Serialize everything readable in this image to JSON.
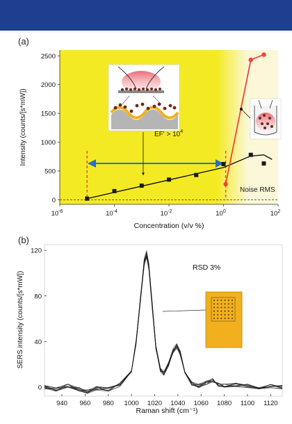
{
  "panels": {
    "a_label": "(a)",
    "b_label": "(b)"
  },
  "chart_data": [
    {
      "type": "scatter",
      "xlabel": "Concentration (v/v %)",
      "ylabel": "Intensity (counts/[s*mW])",
      "x_scale": "log",
      "xlim": [
        1e-06,
        100
      ],
      "ylim": [
        -80,
        2600
      ],
      "x_ticks": [
        {
          "value": 1e-06,
          "mant": "10",
          "exp": "-6"
        },
        {
          "value": 0.0001,
          "mant": "10",
          "exp": "-4"
        },
        {
          "value": 0.01,
          "mant": "10",
          "exp": "-2"
        },
        {
          "value": 1,
          "mant": "10",
          "exp": "0"
        },
        {
          "value": 100,
          "mant": "10",
          "exp": "2"
        }
      ],
      "y_ticks": [
        0,
        500,
        1000,
        1500,
        2000,
        2500
      ],
      "colors": {
        "background_low": "#f4ea24",
        "background_high": "#fbf7d8",
        "points": "#1a1a1a",
        "fit": "#111111",
        "red": "#f0423a",
        "arrow": "#2e6dbf"
      },
      "series": [
        {
          "values": [
            {
              "x": 1e-05,
              "y": 20
            },
            {
              "x": 0.0001,
              "y": 150
            },
            {
              "x": 0.001,
              "y": 245
            },
            {
              "x": 0.01,
              "y": 350
            },
            {
              "x": 0.1,
              "y": 430
            },
            {
              "x": 1,
              "y": 620
            },
            {
              "x": 10,
              "y": 780
            },
            {
              "x": 30,
              "y": 630
            }
          ]
        },
        {
          "values": [
            {
              "x": 1.2,
              "y": 270
            },
            {
              "x": 10,
              "y": 2430
            },
            {
              "x": 30,
              "y": 2520
            }
          ]
        }
      ],
      "fit_line": [
        {
          "x": 1e-05,
          "y": 20
        },
        {
          "x": 1,
          "y": 560
        },
        {
          "x": 10,
          "y": 760
        },
        {
          "x": 30,
          "y": 780
        },
        {
          "x": 60,
          "y": 700
        }
      ],
      "dashed_marks": [
        1e-05,
        1.2
      ],
      "annotations": {
        "ef_text": "EF' > 10",
        "ef_exp": "4",
        "noise_text": "Noise RMS"
      },
      "grid": false
    },
    {
      "type": "line",
      "xlabel": "Raman shift (cm⁻¹)",
      "ylabel": "SERS intensity (counts/[s*mW])",
      "xlim": [
        925,
        1130
      ],
      "ylim": [
        -8,
        125
      ],
      "x_ticks": [
        940,
        960,
        980,
        1000,
        1020,
        1040,
        1060,
        1080,
        1100,
        1120
      ],
      "y_ticks": [
        0,
        40,
        80,
        120
      ],
      "annotation": "RSD 3%",
      "colors": {
        "line": "#1a1a1a",
        "chip": "#f2b01e",
        "chip_border": "#b8860b",
        "grid_dot": "#6a4b10"
      },
      "spectrum": [
        [
          925,
          0
        ],
        [
          935,
          -2
        ],
        [
          945,
          1
        ],
        [
          955,
          -2
        ],
        [
          962,
          -4
        ],
        [
          970,
          -1
        ],
        [
          980,
          -2
        ],
        [
          990,
          2
        ],
        [
          1000,
          15
        ],
        [
          1004,
          40
        ],
        [
          1008,
          80
        ],
        [
          1011,
          110
        ],
        [
          1013,
          116
        ],
        [
          1015,
          105
        ],
        [
          1018,
          70
        ],
        [
          1021,
          35
        ],
        [
          1025,
          15
        ],
        [
          1028,
          12
        ],
        [
          1032,
          20
        ],
        [
          1036,
          32
        ],
        [
          1039,
          36
        ],
        [
          1042,
          30
        ],
        [
          1046,
          12
        ],
        [
          1052,
          3
        ],
        [
          1058,
          1
        ],
        [
          1065,
          4
        ],
        [
          1070,
          6
        ],
        [
          1075,
          2
        ],
        [
          1080,
          1
        ],
        [
          1090,
          2
        ],
        [
          1100,
          1
        ],
        [
          1110,
          0
        ],
        [
          1120,
          1
        ],
        [
          1130,
          0
        ]
      ],
      "grid": false
    }
  ]
}
